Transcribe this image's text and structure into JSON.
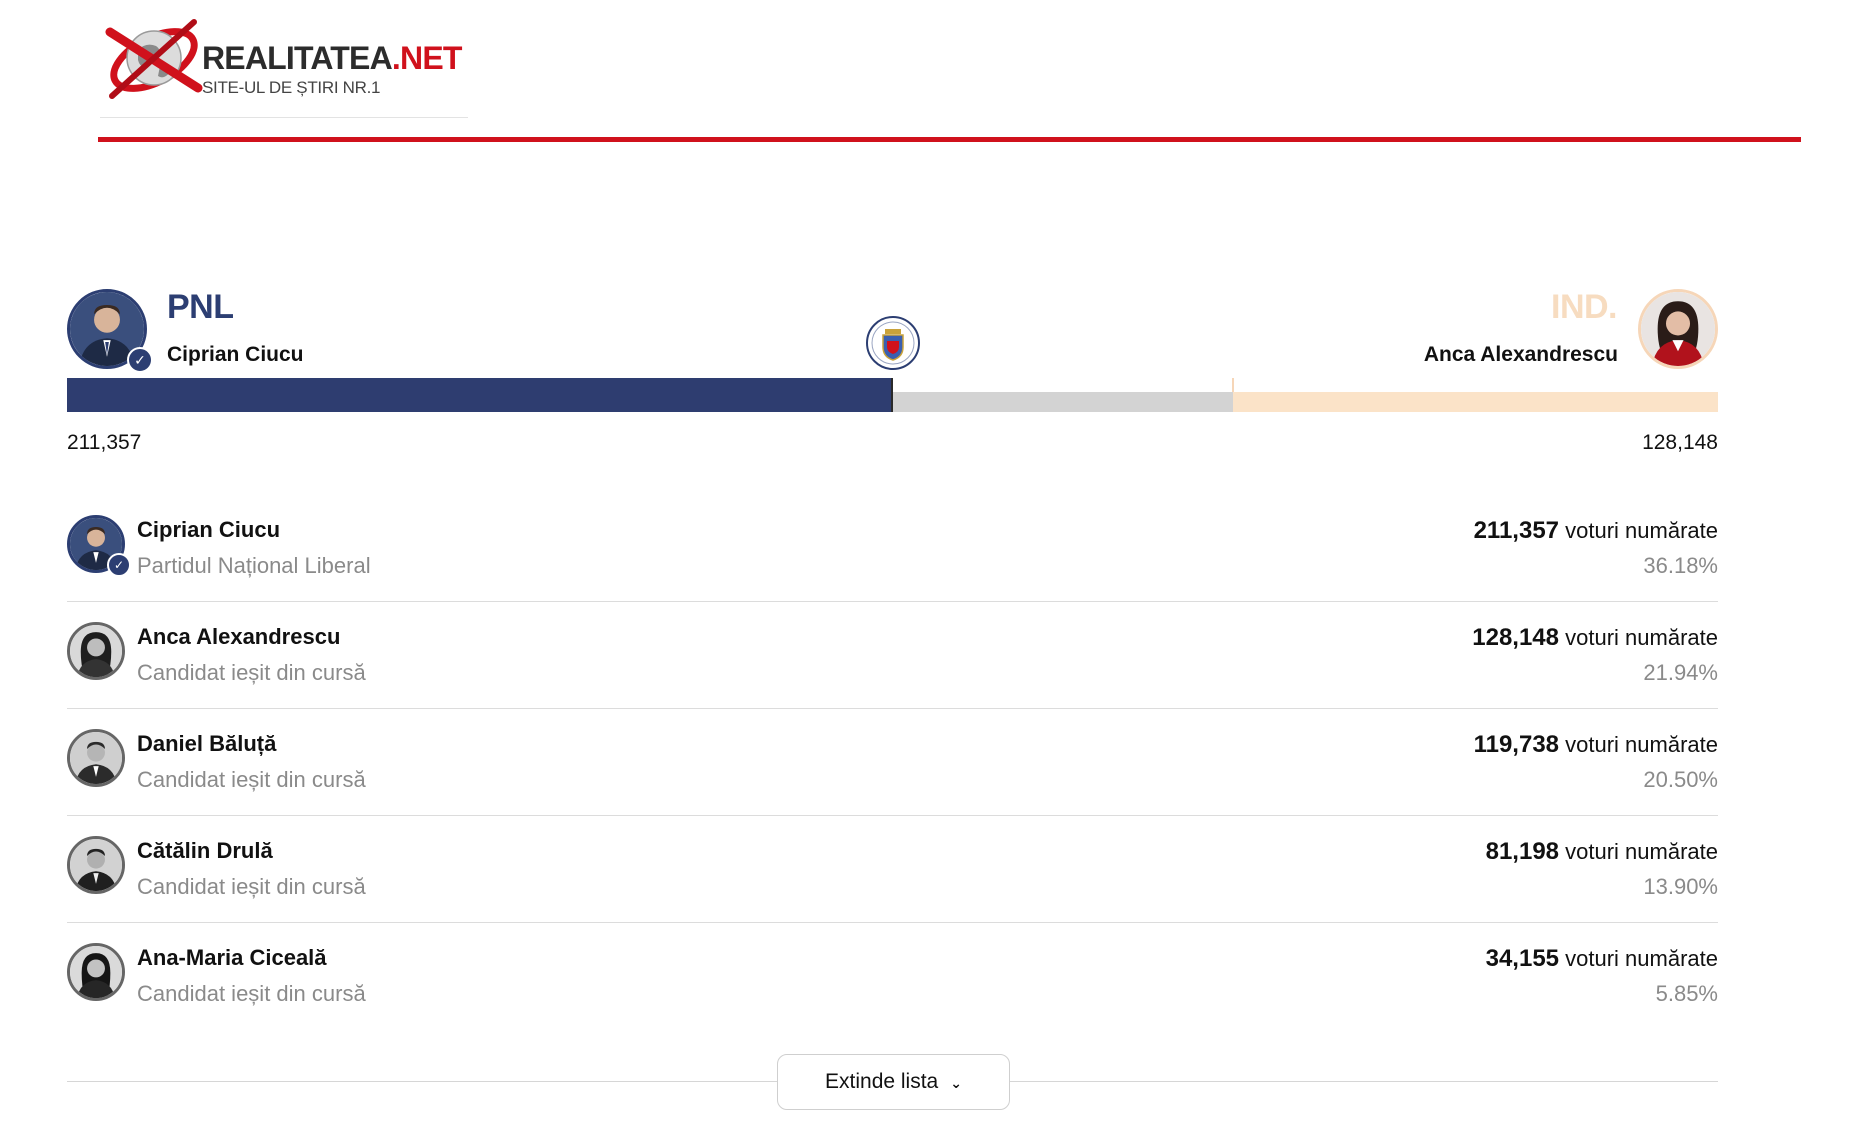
{
  "site": {
    "name_main": "REALITATEA",
    "name_tld": ".NET",
    "tagline": "SITE-UL DE ȘTIRI NR.1"
  },
  "colors": {
    "brand_red": "#d0111c",
    "pnl_blue": "#2e3d70",
    "independent_peach": "#fbe3c8",
    "undecided_gray": "#d3d3d3"
  },
  "head_to_head": {
    "left": {
      "party": "PNL",
      "name": "Ciprian Ciucu",
      "votes": "211,357",
      "winner": true
    },
    "right": {
      "party": "IND.",
      "name": "Anca Alexandrescu",
      "votes": "128,148"
    },
    "seal_icon": "bucharest-coat-of-arms-icon",
    "bar": {
      "left_share": 0.4995,
      "right_share": 0.2937
    }
  },
  "candidates": [
    {
      "name": "Ciprian Ciucu",
      "party": "Partidul Național Liberal",
      "votes": "211,357",
      "votes_suffix": "voturi numărate",
      "percent": "36.18%",
      "winner": true
    },
    {
      "name": "Anca Alexandrescu",
      "party": "Candidat ieșit din cursă",
      "votes": "128,148",
      "votes_suffix": "voturi numărate",
      "percent": "21.94%"
    },
    {
      "name": "Daniel Băluță",
      "party": "Candidat ieșit din cursă",
      "votes": "119,738",
      "votes_suffix": "voturi numărate",
      "percent": "20.50%"
    },
    {
      "name": "Cătălin Drulă",
      "party": "Candidat ieșit din cursă",
      "votes": "81,198",
      "votes_suffix": "voturi numărate",
      "percent": "13.90%"
    },
    {
      "name": "Ana-Maria Ciceală",
      "party": "Candidat ieșit din cursă",
      "votes": "34,155",
      "votes_suffix": "voturi numărate",
      "percent": "5.85%"
    }
  ],
  "expand_button": {
    "label": "Extinde lista",
    "icon": "chevron-down-icon"
  }
}
